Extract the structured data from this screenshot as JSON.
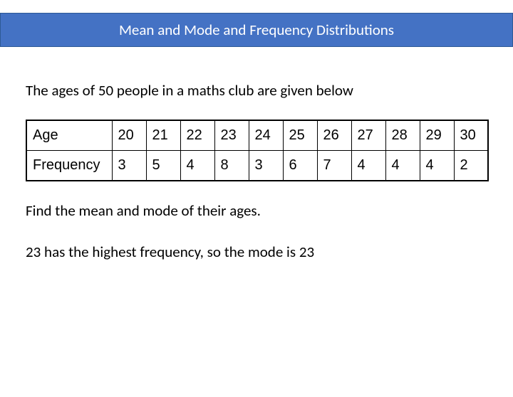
{
  "title": "Mean and Mode and Frequency Distributions",
  "intro": "The ages of 50 people in a maths club are given below",
  "table": {
    "row1_label": "Age",
    "row2_label": "Frequency",
    "ages": [
      "20",
      "21",
      "22",
      "23",
      "24",
      "25",
      "26",
      "27",
      "28",
      "29",
      "30"
    ],
    "frequencies": [
      "3",
      "5",
      "4",
      "8",
      "3",
      "6",
      "7",
      "4",
      "4",
      "4",
      "2"
    ]
  },
  "question": "Find the mean and mode of their ages.",
  "answer": "23 has the highest frequency, so the mode is 23",
  "colors": {
    "title_bg": "#4472c4",
    "title_text": "#ffffff",
    "body_bg": "#ffffff",
    "text": "#000000",
    "border": "#000000"
  }
}
